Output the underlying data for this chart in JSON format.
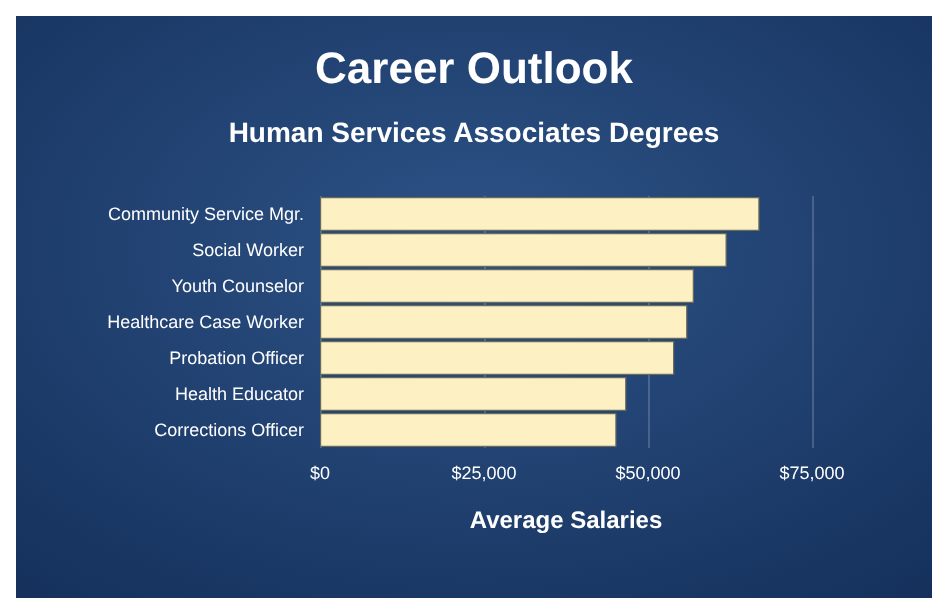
{
  "chart_data": {
    "type": "bar",
    "orientation": "horizontal",
    "title": "Career Outlook",
    "subtitle": "Human Services Associates Degrees",
    "xlabel": "Average Salaries",
    "categories": [
      "Community Service Mgr.",
      "Social Worker",
      "Youth Counselor",
      "Healthcare Case Worker",
      "Probation Officer",
      "Health Educator",
      "Corrections Officer"
    ],
    "values": [
      67000,
      62000,
      57000,
      56000,
      54000,
      46700,
      45200
    ],
    "color": "#fdf1c4",
    "xlim": [
      0,
      75000
    ],
    "xticks": [
      {
        "value": 0,
        "label": "$0"
      },
      {
        "value": 25000,
        "label": "$25,000"
      },
      {
        "value": 50000,
        "label": "$50,000"
      },
      {
        "value": 75000,
        "label": "$75,000"
      }
    ],
    "grid": "x"
  }
}
